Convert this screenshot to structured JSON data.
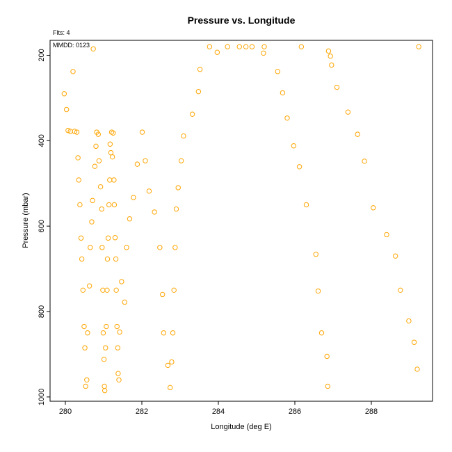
{
  "chart_data": {
    "type": "scatter",
    "title": "Pressure vs. Longitude",
    "xlabel": "Longitude (deg E)",
    "ylabel": "Pressure (mbar)",
    "annotations": {
      "flts": "Flts: 4",
      "mmdd": "MMDD: 0123"
    },
    "xlim": [
      279.6,
      289.6
    ],
    "ylim": [
      1010,
      165
    ],
    "y_inverted": true,
    "x_ticks": [
      280,
      282,
      284,
      286,
      288
    ],
    "y_ticks": [
      200,
      400,
      600,
      800,
      1000
    ],
    "x_tick_labels": [
      "280",
      "282",
      "284",
      "286",
      "288"
    ],
    "y_tick_labels": [
      "200",
      "400",
      "600",
      "800",
      "1000"
    ],
    "grid": false,
    "marker": "open-circle",
    "marker_color": "#FFA500",
    "series": [
      {
        "x": [
          279.97,
          280.03,
          280.07,
          280.13,
          280.2,
          280.24,
          280.3,
          280.33,
          280.35,
          280.38,
          280.41,
          280.43,
          280.46,
          280.49,
          280.51,
          280.53,
          280.56,
          280.58,
          280.63,
          280.65,
          280.69,
          280.71,
          280.73,
          280.77,
          280.8,
          280.82,
          280.86,
          280.88,
          280.92,
          280.95,
          280.96,
          280.98,
          280.99,
          281.01,
          281.02,
          281.03,
          281.05,
          281.07,
          281.09,
          281.1,
          281.12,
          281.14,
          281.16,
          281.17,
          281.19,
          281.21,
          281.23,
          281.25,
          281.27,
          281.28,
          281.3,
          281.32,
          281.33,
          281.35,
          281.37,
          281.38,
          281.4,
          281.42,
          281.47,
          281.55,
          281.6,
          281.68,
          281.78,
          281.88,
          282.01,
          282.09,
          282.19,
          282.33,
          282.47,
          282.54,
          282.57,
          282.68,
          282.74,
          282.78,
          282.81,
          282.84,
          282.87,
          282.9,
          282.95,
          283.03,
          283.09,
          283.32,
          283.48,
          283.52,
          283.77,
          283.97,
          284.24,
          284.55,
          284.72,
          284.88,
          285.18,
          285.2,
          285.55,
          285.68,
          285.8,
          285.97,
          286.12,
          286.17,
          286.3,
          286.55,
          286.61,
          286.7,
          286.84,
          286.86,
          286.88,
          286.93,
          286.96,
          287.1,
          287.39,
          287.64,
          287.82,
          288.05,
          288.4,
          288.63,
          288.76,
          288.98,
          289.12,
          289.2,
          289.24
        ],
        "y": [
          290,
          327,
          376,
          378,
          238,
          378,
          380,
          440,
          492,
          550,
          628,
          677,
          750,
          835,
          885,
          975,
          960,
          850,
          740,
          650,
          590,
          540,
          185,
          460,
          413,
          380,
          385,
          447,
          508,
          560,
          650,
          750,
          850,
          912,
          975,
          985,
          885,
          835,
          750,
          677,
          628,
          550,
          492,
          408,
          428,
          380,
          438,
          382,
          492,
          550,
          627,
          677,
          750,
          835,
          885,
          945,
          960,
          848,
          730,
          778,
          650,
          583,
          533,
          455,
          380,
          447,
          518,
          567,
          650,
          760,
          850,
          926,
          978,
          918,
          850,
          750,
          650,
          560,
          510,
          447,
          389,
          338,
          285,
          233,
          180,
          193,
          180,
          180,
          180,
          180,
          195,
          180,
          238,
          288,
          347,
          412,
          461,
          180,
          550,
          666,
          752,
          850,
          905,
          975,
          190,
          202,
          223,
          275,
          333,
          385,
          448,
          557,
          620,
          670,
          750,
          822,
          872,
          935,
          180
        ]
      }
    ]
  }
}
